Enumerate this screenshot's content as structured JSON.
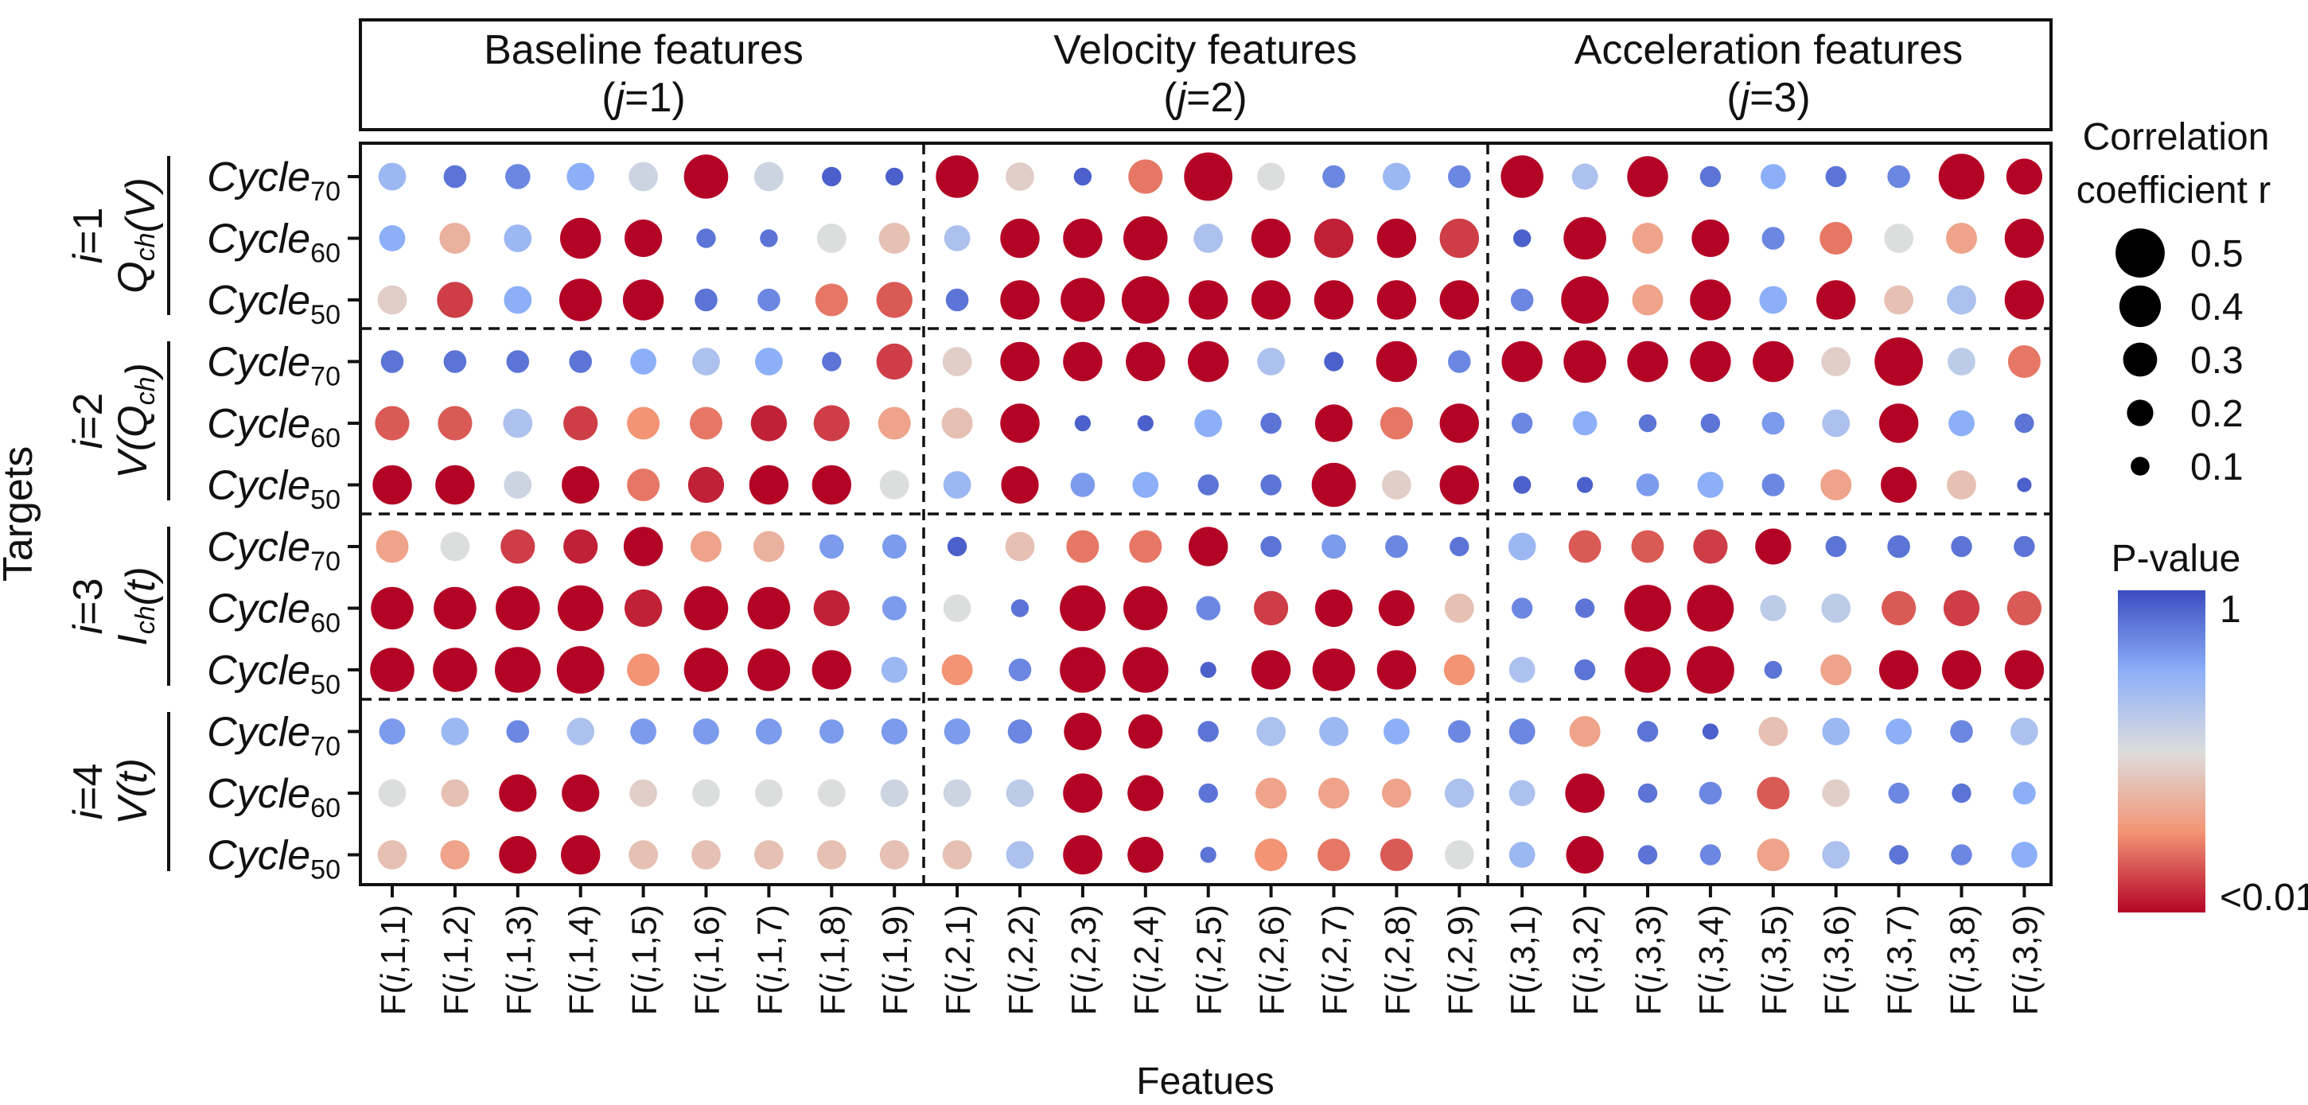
{
  "chart_data": {
    "type": "bubble-matrix",
    "feature_groups": [
      {
        "name": "Baseline features",
        "sub_j": "1"
      },
      {
        "name": "Velocity features",
        "sub_j": "2"
      },
      {
        "name": "Acceleration features",
        "sub_j": "3"
      }
    ],
    "x_categories": [
      "F(i,1,1)",
      "F(i,1,2)",
      "F(i,1,3)",
      "F(i,1,4)",
      "F(i,1,5)",
      "F(i,1,6)",
      "F(i,1,7)",
      "F(i,1,8)",
      "F(i,1,9)",
      "F(i,2,1)",
      "F(i,2,2)",
      "F(i,2,3)",
      "F(i,2,4)",
      "F(i,2,5)",
      "F(i,2,6)",
      "F(i,2,7)",
      "F(i,2,8)",
      "F(i,2,9)",
      "F(i,3,1)",
      "F(i,3,2)",
      "F(i,3,3)",
      "F(i,3,4)",
      "F(i,3,5)",
      "F(i,3,6)",
      "F(i,3,7)",
      "F(i,3,8)",
      "F(i,3,9)"
    ],
    "xlabel": "Featues",
    "ylabel": "Targets",
    "target_groups": [
      {
        "i": "1",
        "name": "Q_ch(V)",
        "rows": [
          "Cycle_70",
          "Cycle_60",
          "Cycle_50"
        ]
      },
      {
        "i": "2",
        "name": "V(Q_ch)",
        "rows": [
          "Cycle_70",
          "Cycle_60",
          "Cycle_50"
        ]
      },
      {
        "i": "3",
        "name": "I_ch(t)",
        "rows": [
          "Cycle_70",
          "Cycle_60",
          "Cycle_50"
        ]
      },
      {
        "i": "4",
        "name": "V(t)",
        "rows": [
          "Cycle_70",
          "Cycle_60",
          "Cycle_50"
        ]
      }
    ],
    "size_legend": {
      "title_line1": "Correlation",
      "title_line2": "coefficient r",
      "values": [
        0.5,
        0.4,
        0.3,
        0.2,
        0.1
      ],
      "labels": [
        "0.5",
        "0.4",
        "0.3",
        "0.2",
        "0.1"
      ]
    },
    "color_legend": {
      "title": "P-value",
      "top_label": "1",
      "bottom_label": "<0.01",
      "colormap": "coolwarm"
    },
    "r_values": [
      [
        0.2,
        0.14,
        0.17,
        0.2,
        0.22,
        0.4,
        0.22,
        0.1,
        0.08,
        0.38,
        0.21,
        0.08,
        0.28,
        0.45,
        0.2,
        0.14,
        0.2,
        0.14,
        0.38,
        0.18,
        0.36,
        0.12,
        0.17,
        0.12,
        0.14,
        0.42,
        0.3
      ],
      [
        0.18,
        0.24,
        0.2,
        0.36,
        0.32,
        0.1,
        0.08,
        0.22,
        0.24,
        0.18,
        0.34,
        0.34,
        0.4,
        0.22,
        0.34,
        0.34,
        0.34,
        0.34,
        0.08,
        0.38,
        0.24,
        0.32,
        0.14,
        0.26,
        0.22,
        0.24,
        0.34
      ],
      [
        0.22,
        0.3,
        0.2,
        0.38,
        0.36,
        0.14,
        0.14,
        0.26,
        0.3,
        0.14,
        0.34,
        0.4,
        0.44,
        0.34,
        0.34,
        0.34,
        0.34,
        0.34,
        0.14,
        0.44,
        0.24,
        0.36,
        0.2,
        0.34,
        0.22,
        0.22,
        0.34
      ],
      [
        0.14,
        0.14,
        0.14,
        0.14,
        0.18,
        0.2,
        0.2,
        0.1,
        0.3,
        0.22,
        0.34,
        0.34,
        0.34,
        0.36,
        0.2,
        0.1,
        0.36,
        0.14,
        0.36,
        0.38,
        0.36,
        0.36,
        0.36,
        0.22,
        0.45,
        0.2,
        0.26
      ],
      [
        0.28,
        0.28,
        0.22,
        0.28,
        0.26,
        0.26,
        0.3,
        0.3,
        0.26,
        0.24,
        0.34,
        0.06,
        0.06,
        0.2,
        0.12,
        0.32,
        0.26,
        0.34,
        0.12,
        0.16,
        0.08,
        0.1,
        0.14,
        0.2,
        0.34,
        0.18,
        0.1
      ],
      [
        0.34,
        0.34,
        0.2,
        0.32,
        0.26,
        0.3,
        0.34,
        0.34,
        0.22,
        0.2,
        0.32,
        0.16,
        0.18,
        0.12,
        0.12,
        0.4,
        0.22,
        0.34,
        0.08,
        0.06,
        0.14,
        0.18,
        0.14,
        0.24,
        0.3,
        0.22,
        0.04
      ],
      [
        0.26,
        0.22,
        0.28,
        0.28,
        0.34,
        0.24,
        0.24,
        0.16,
        0.16,
        0.1,
        0.22,
        0.26,
        0.26,
        0.34,
        0.12,
        0.16,
        0.14,
        0.1,
        0.2,
        0.26,
        0.26,
        0.28,
        0.3,
        0.12,
        0.14,
        0.12,
        0.12
      ],
      [
        0.38,
        0.38,
        0.4,
        0.42,
        0.32,
        0.4,
        0.38,
        0.3,
        0.16,
        0.2,
        0.08,
        0.42,
        0.4,
        0.16,
        0.28,
        0.32,
        0.3,
        0.22,
        0.12,
        0.1,
        0.43,
        0.43,
        0.18,
        0.22,
        0.28,
        0.3,
        0.28
      ],
      [
        0.4,
        0.4,
        0.42,
        0.44,
        0.26,
        0.4,
        0.38,
        0.34,
        0.18,
        0.24,
        0.14,
        0.42,
        0.42,
        0.06,
        0.34,
        0.38,
        0.34,
        0.24,
        0.18,
        0.12,
        0.42,
        0.44,
        0.08,
        0.24,
        0.34,
        0.34,
        0.34
      ],
      [
        0.18,
        0.2,
        0.14,
        0.2,
        0.18,
        0.18,
        0.18,
        0.16,
        0.18,
        0.18,
        0.16,
        0.32,
        0.28,
        0.12,
        0.22,
        0.22,
        0.18,
        0.14,
        0.18,
        0.24,
        0.12,
        0.06,
        0.22,
        0.2,
        0.18,
        0.14,
        0.2
      ],
      [
        0.2,
        0.2,
        0.32,
        0.32,
        0.2,
        0.2,
        0.2,
        0.2,
        0.2,
        0.2,
        0.2,
        0.34,
        0.3,
        0.1,
        0.24,
        0.24,
        0.22,
        0.22,
        0.18,
        0.34,
        0.1,
        0.14,
        0.26,
        0.2,
        0.12,
        0.1,
        0.14
      ],
      [
        0.22,
        0.22,
        0.32,
        0.34,
        0.22,
        0.22,
        0.22,
        0.22,
        0.22,
        0.22,
        0.2,
        0.34,
        0.3,
        0.06,
        0.26,
        0.26,
        0.26,
        0.22,
        0.18,
        0.32,
        0.1,
        0.12,
        0.26,
        0.2,
        0.1,
        0.12,
        0.18
      ]
    ],
    "p_color": [
      [
        0.7,
        0.9,
        0.85,
        0.75,
        0.55,
        0.0,
        0.55,
        0.95,
        0.95,
        0.0,
        0.45,
        0.95,
        0.2,
        0.0,
        0.5,
        0.85,
        0.7,
        0.85,
        0.0,
        0.65,
        0.0,
        0.9,
        0.75,
        0.9,
        0.85,
        0.0,
        0.0
      ],
      [
        0.75,
        0.35,
        0.7,
        0.0,
        0.0,
        0.9,
        0.9,
        0.5,
        0.4,
        0.65,
        0.0,
        0.0,
        0.0,
        0.65,
        0.0,
        0.05,
        0.0,
        0.1,
        0.95,
        0.0,
        0.3,
        0.0,
        0.85,
        0.2,
        0.5,
        0.3,
        0.0
      ],
      [
        0.45,
        0.1,
        0.75,
        0.0,
        0.0,
        0.9,
        0.85,
        0.2,
        0.15,
        0.9,
        0.0,
        0.0,
        0.0,
        0.0,
        0.0,
        0.0,
        0.0,
        0.0,
        0.85,
        0.0,
        0.3,
        0.0,
        0.75,
        0.0,
        0.4,
        0.65,
        0.0
      ],
      [
        0.9,
        0.9,
        0.9,
        0.9,
        0.75,
        0.65,
        0.75,
        0.9,
        0.1,
        0.45,
        0.0,
        0.0,
        0.0,
        0.0,
        0.65,
        0.95,
        0.0,
        0.85,
        0.0,
        0.0,
        0.0,
        0.0,
        0.0,
        0.45,
        0.0,
        0.6,
        0.2
      ],
      [
        0.15,
        0.15,
        0.65,
        0.1,
        0.25,
        0.2,
        0.05,
        0.1,
        0.3,
        0.4,
        0.0,
        0.95,
        0.95,
        0.75,
        0.9,
        0.0,
        0.2,
        0.0,
        0.85,
        0.75,
        0.9,
        0.9,
        0.8,
        0.65,
        0.0,
        0.75,
        0.9
      ],
      [
        0.0,
        0.0,
        0.55,
        0.0,
        0.2,
        0.05,
        0.0,
        0.0,
        0.5,
        0.7,
        0.0,
        0.8,
        0.75,
        0.9,
        0.9,
        0.0,
        0.45,
        0.0,
        0.95,
        0.95,
        0.8,
        0.75,
        0.85,
        0.3,
        0.0,
        0.4,
        0.95
      ],
      [
        0.3,
        0.5,
        0.1,
        0.05,
        0.0,
        0.3,
        0.35,
        0.8,
        0.8,
        0.95,
        0.4,
        0.2,
        0.2,
        0.0,
        0.9,
        0.8,
        0.85,
        0.9,
        0.7,
        0.15,
        0.15,
        0.1,
        0.0,
        0.9,
        0.9,
        0.9,
        0.9
      ],
      [
        0.0,
        0.0,
        0.0,
        0.0,
        0.05,
        0.0,
        0.0,
        0.05,
        0.8,
        0.5,
        0.9,
        0.0,
        0.0,
        0.85,
        0.1,
        0.0,
        0.0,
        0.4,
        0.85,
        0.9,
        0.0,
        0.0,
        0.6,
        0.6,
        0.15,
        0.1,
        0.15
      ],
      [
        0.0,
        0.0,
        0.0,
        0.0,
        0.25,
        0.0,
        0.0,
        0.0,
        0.7,
        0.25,
        0.85,
        0.0,
        0.0,
        0.95,
        0.0,
        0.0,
        0.0,
        0.25,
        0.65,
        0.9,
        0.0,
        0.0,
        0.9,
        0.3,
        0.0,
        0.0,
        0.0
      ],
      [
        0.8,
        0.7,
        0.85,
        0.65,
        0.8,
        0.8,
        0.8,
        0.8,
        0.8,
        0.8,
        0.85,
        0.0,
        0.0,
        0.9,
        0.65,
        0.7,
        0.75,
        0.85,
        0.85,
        0.3,
        0.9,
        0.95,
        0.4,
        0.7,
        0.75,
        0.85,
        0.65
      ],
      [
        0.5,
        0.4,
        0.0,
        0.0,
        0.45,
        0.5,
        0.5,
        0.5,
        0.55,
        0.55,
        0.6,
        0.0,
        0.0,
        0.9,
        0.3,
        0.3,
        0.3,
        0.65,
        0.65,
        0.0,
        0.9,
        0.85,
        0.15,
        0.45,
        0.85,
        0.9,
        0.75
      ],
      [
        0.4,
        0.3,
        0.0,
        0.0,
        0.4,
        0.4,
        0.4,
        0.4,
        0.4,
        0.4,
        0.65,
        0.0,
        0.0,
        0.9,
        0.25,
        0.2,
        0.15,
        0.5,
        0.7,
        0.0,
        0.9,
        0.85,
        0.3,
        0.65,
        0.9,
        0.85,
        0.75
      ]
    ]
  }
}
